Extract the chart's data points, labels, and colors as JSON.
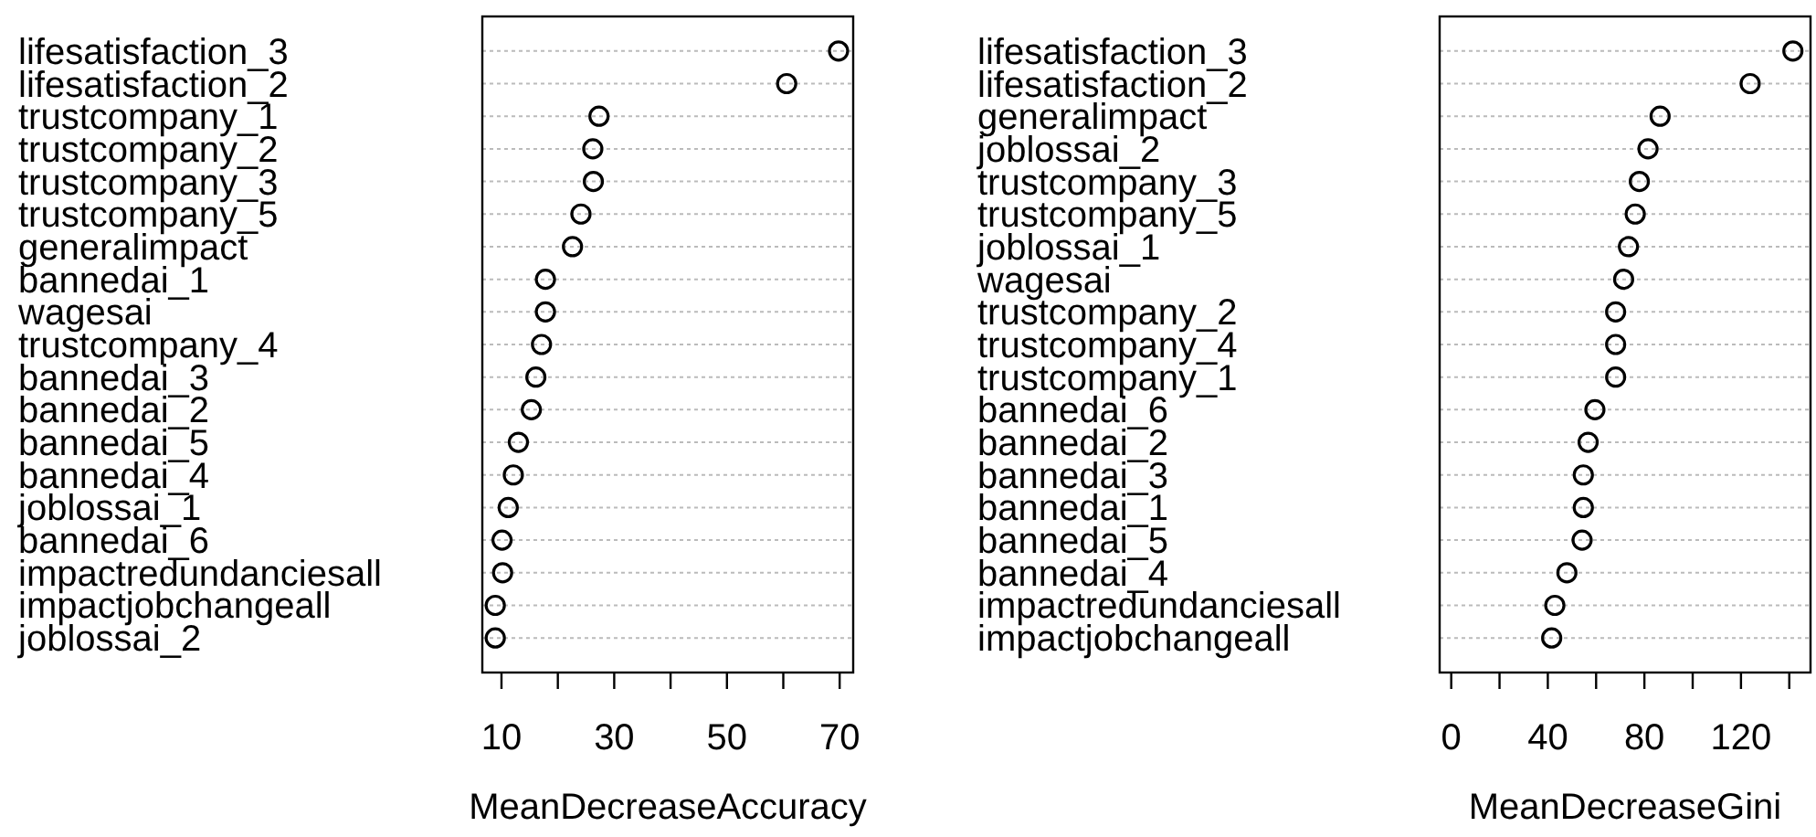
{
  "chart_data": [
    {
      "type": "scatter",
      "orientation": "horizontal",
      "xlabel": "MeanDecreaseAccuracy",
      "marker": "circle",
      "grid": "y",
      "categories": [
        "lifesatisfaction_3",
        "lifesatisfaction_2",
        "trustcompany_1",
        "trustcompany_2",
        "trustcompany_3",
        "trustcompany_5",
        "generalimpact",
        "bannedai_1",
        "wagesai",
        "trustcompany_4",
        "bannedai_3",
        "bannedai_2",
        "bannedai_5",
        "bannedai_4",
        "joblossai_1",
        "bannedai_6",
        "impactredundanciesall",
        "impactjobchangeall",
        "joblossai_2"
      ],
      "series": [
        {
          "color": "#000000",
          "values": [
            69.8,
            60.6,
            27.3,
            26.2,
            26.3,
            24.1,
            22.6,
            17.8,
            17.8,
            17.1,
            16.1,
            15.3,
            13.0,
            12.1,
            11.2,
            10.1,
            10.2,
            8.9,
            8.9
          ]
        }
      ],
      "xlim": [
        6.6,
        72.4
      ],
      "xticks": [
        10,
        {
          "value": 20,
          "label": null
        },
        30,
        {
          "value": 40,
          "label": null
        },
        50,
        {
          "value": 60,
          "label": null
        },
        70
      ]
    },
    {
      "type": "scatter",
      "orientation": "horizontal",
      "xlabel": "MeanDecreaseGini",
      "marker": "circle",
      "grid": "y",
      "categories": [
        "lifesatisfaction_3",
        "lifesatisfaction_2",
        "generalimpact",
        "joblossai_2",
        "trustcompany_3",
        "trustcompany_5",
        "joblossai_1",
        "wagesai",
        "trustcompany_2",
        "trustcompany_4",
        "trustcompany_1",
        "bannedai_6",
        "bannedai_2",
        "bannedai_3",
        "bannedai_1",
        "bannedai_5",
        "bannedai_4",
        "impactredundanciesall",
        "impactjobchangeall"
      ],
      "series": [
        {
          "color": "#000000",
          "values": [
            141.5,
            123.8,
            86.5,
            81.5,
            77.9,
            76.2,
            73.4,
            71.4,
            68.1,
            68.1,
            68.1,
            59.5,
            56.7,
            54.7,
            54.7,
            54.2,
            47.9,
            42.9,
            41.6
          ]
        }
      ],
      "xlim": [
        -4.8,
        148.8
      ],
      "xticks": [
        0,
        {
          "value": 20,
          "label": null
        },
        40,
        {
          "value": 60,
          "label": null
        },
        80,
        {
          "value": 100,
          "label": null
        },
        120,
        {
          "value": 140,
          "label": null
        }
      ]
    }
  ]
}
